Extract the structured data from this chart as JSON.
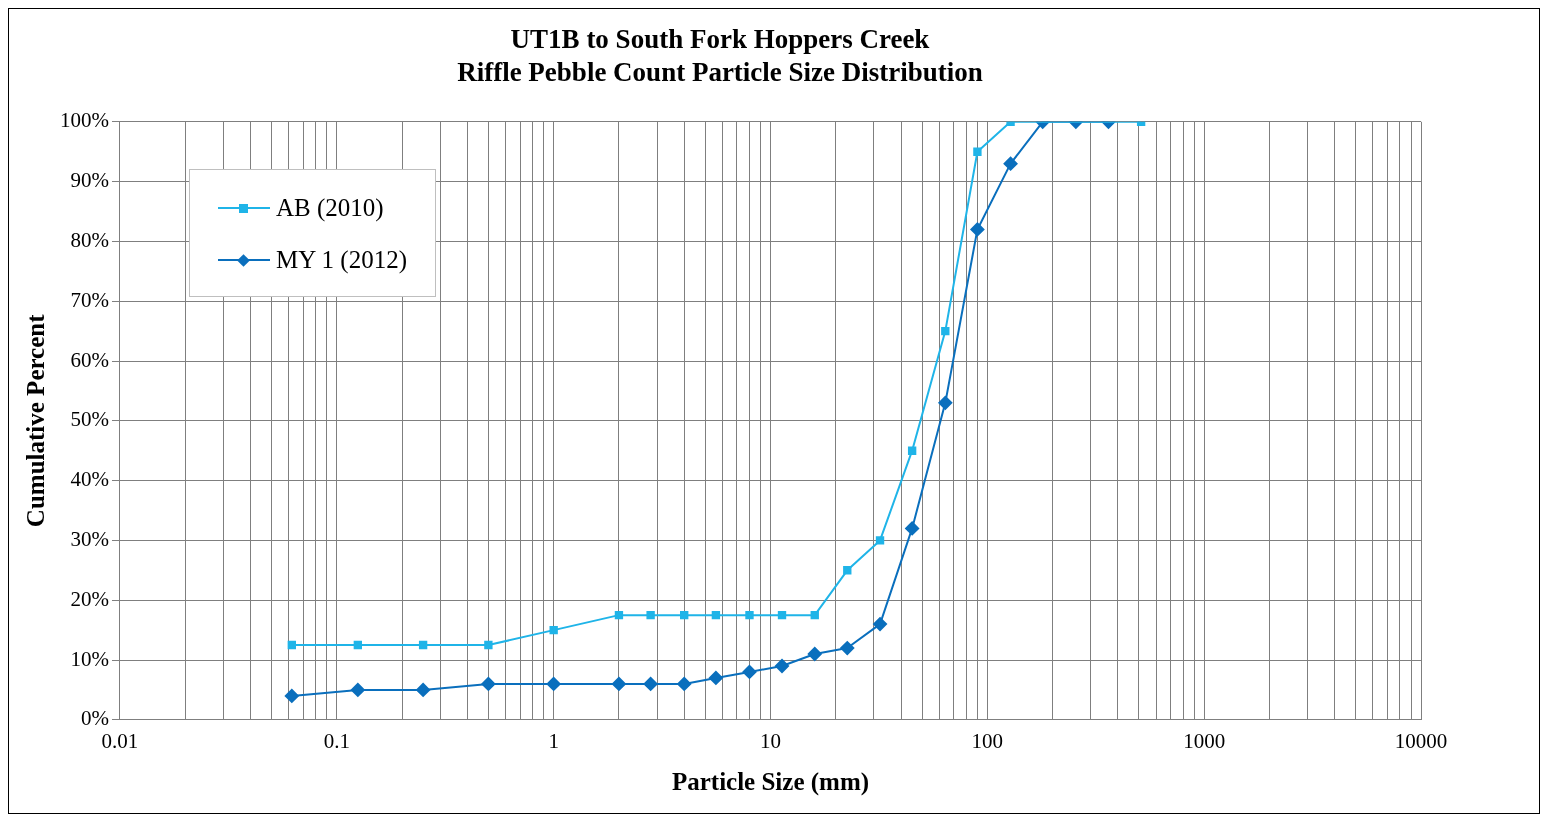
{
  "chart_data": {
    "type": "line",
    "title": "UT1B to South Fork Hoppers Creek\nRiffle Pebble Count Particle Size Distribution",
    "xlabel": "Particle Size (mm)",
    "ylabel": "Cumulative Percent",
    "log": "x",
    "grid": true,
    "legend": "top left",
    "line_style": "solid",
    "xlim": [
      0.01,
      10000
    ],
    "xticks": [
      0.01,
      {
        "value": 0.02,
        "label": null
      },
      {
        "value": 0.03,
        "label": null
      },
      {
        "value": 0.04,
        "label": null
      },
      {
        "value": 0.05,
        "label": null
      },
      {
        "value": 0.06,
        "label": null
      },
      {
        "value": 0.07,
        "label": null
      },
      {
        "value": 0.08,
        "label": null
      },
      {
        "value": 0.09,
        "label": null
      },
      0.1,
      {
        "value": 0.2,
        "label": null
      },
      {
        "value": 0.3,
        "label": null
      },
      {
        "value": 0.4,
        "label": null
      },
      {
        "value": 0.5,
        "label": null
      },
      {
        "value": 0.6,
        "label": null
      },
      {
        "value": 0.7,
        "label": null
      },
      {
        "value": 0.8,
        "label": null
      },
      {
        "value": 0.9,
        "label": null
      },
      1,
      {
        "value": 2,
        "label": null
      },
      {
        "value": 3,
        "label": null
      },
      {
        "value": 4,
        "label": null
      },
      {
        "value": 5,
        "label": null
      },
      {
        "value": 6,
        "label": null
      },
      {
        "value": 7,
        "label": null
      },
      {
        "value": 8,
        "label": null
      },
      {
        "value": 9,
        "label": null
      },
      10,
      {
        "value": 20,
        "label": null
      },
      {
        "value": 30,
        "label": null
      },
      {
        "value": 40,
        "label": null
      },
      {
        "value": 50,
        "label": null
      },
      {
        "value": 60,
        "label": null
      },
      {
        "value": 70,
        "label": null
      },
      {
        "value": 80,
        "label": null
      },
      {
        "value": 90,
        "label": null
      },
      100,
      {
        "value": 200,
        "label": null
      },
      {
        "value": 300,
        "label": null
      },
      {
        "value": 400,
        "label": null
      },
      {
        "value": 500,
        "label": null
      },
      {
        "value": 600,
        "label": null
      },
      {
        "value": 700,
        "label": null
      },
      {
        "value": 800,
        "label": null
      },
      {
        "value": 900,
        "label": null
      },
      1000,
      {
        "value": 2000,
        "label": null
      },
      {
        "value": 3000,
        "label": null
      },
      {
        "value": 4000,
        "label": null
      },
      {
        "value": 5000,
        "label": null
      },
      {
        "value": 6000,
        "label": null
      },
      {
        "value": 7000,
        "label": null
      },
      {
        "value": 8000,
        "label": null
      },
      {
        "value": 9000,
        "label": null
      },
      10000
    ],
    "ylim": [
      0,
      100
    ],
    "yticks": [
      {
        "value": 0,
        "label": "0%"
      },
      {
        "value": 10,
        "label": "10%"
      },
      {
        "value": 20,
        "label": "20%"
      },
      {
        "value": 30,
        "label": "30%"
      },
      {
        "value": 40,
        "label": "40%"
      },
      {
        "value": 50,
        "label": "50%"
      },
      {
        "value": 60,
        "label": "60%"
      },
      {
        "value": 70,
        "label": "70%"
      },
      {
        "value": 80,
        "label": "80%"
      },
      {
        "value": 90,
        "label": "90%"
      },
      {
        "value": 100,
        "label": "100%"
      }
    ],
    "series": [
      {
        "name": "AB (2010)",
        "color": "#1fb4e8",
        "marker": "square",
        "x": [
          0.062,
          0.125,
          0.25,
          0.5,
          1,
          2,
          2.8,
          4,
          5.6,
          8,
          11.3,
          16,
          22.6,
          32,
          45,
          64,
          90,
          128,
          512
        ],
        "values": [
          12.5,
          12.5,
          12.5,
          12.5,
          15,
          17.5,
          17.5,
          17.5,
          17.5,
          17.5,
          17.5,
          17.5,
          25,
          30,
          45,
          65,
          95,
          100,
          100
        ]
      },
      {
        "name": "MY 1 (2012)",
        "color": "#0a6fbd",
        "marker": "diamond",
        "x": [
          0.062,
          0.125,
          0.25,
          0.5,
          1,
          2,
          2.8,
          4,
          5.6,
          8,
          11.3,
          16,
          22.6,
          32,
          45,
          64,
          90,
          128,
          180,
          256,
          362
        ],
        "values": [
          4,
          5,
          5,
          6,
          6,
          6,
          6,
          6,
          7,
          8,
          9,
          11,
          12,
          16,
          32,
          53,
          82,
          93,
          100,
          100,
          100
        ]
      }
    ]
  }
}
